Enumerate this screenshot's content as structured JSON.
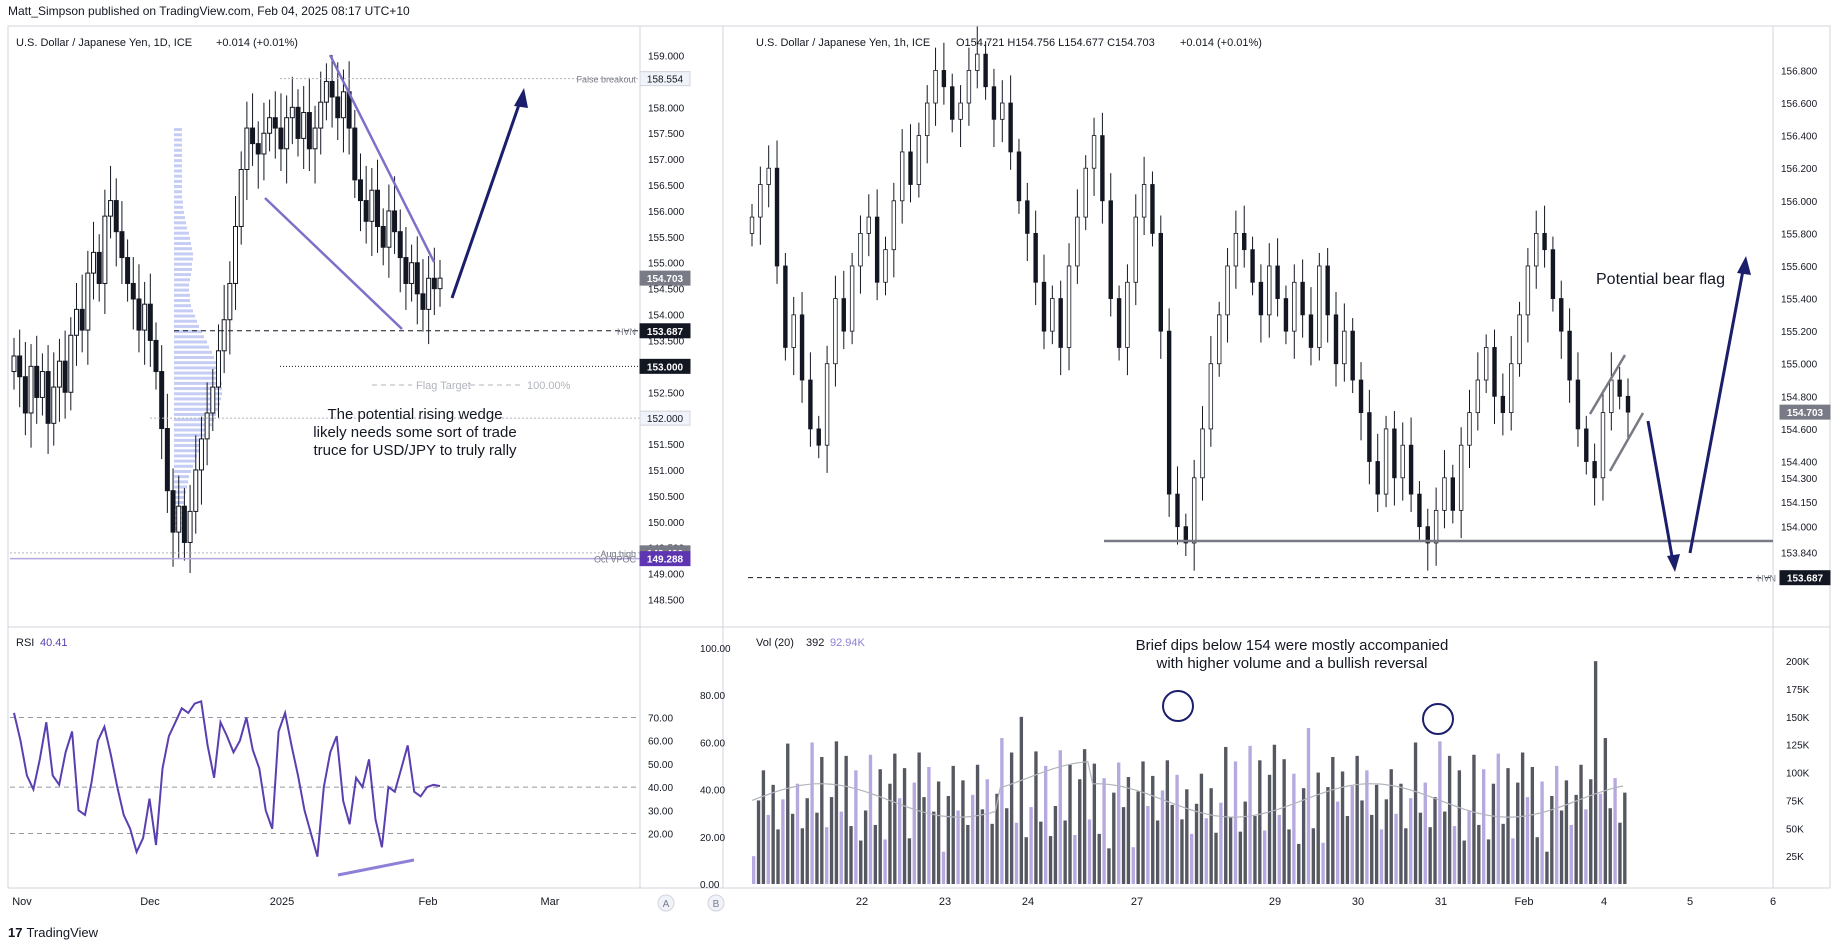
{
  "header": {
    "publisher_line": "Matt_Simpson published on TradingView.com, Feb 04, 2025 08:17 UTC+10"
  },
  "footer": {
    "brand": "TradingView",
    "logo_glyph": "17"
  },
  "left_panel": {
    "symbol_line": "U.S. Dollar / Japanese Yen, 1D, ICE",
    "change": "+0.014 (+0.01%)",
    "price_ticks": [
      "159.000",
      "158.500",
      "158.000",
      "157.500",
      "157.000",
      "156.500",
      "156.000",
      "155.500",
      "155.000",
      "154.500",
      "154.000",
      "153.500",
      "153.000",
      "152.500",
      "152.000",
      "151.500",
      "151.000",
      "150.500",
      "150.000",
      "149.500",
      "149.000",
      "148.500"
    ],
    "badges": [
      {
        "label": "158.554",
        "value": 158.554,
        "style": "light",
        "tag": "False breakout"
      },
      {
        "label": "154.703",
        "value": 154.703,
        "style": "gray",
        "tag": ""
      },
      {
        "label": "153.687",
        "value": 153.687,
        "style": "black",
        "tag": "HVN"
      },
      {
        "label": "153.000",
        "value": 153.0,
        "style": "black",
        "tag": ""
      },
      {
        "label": "152.000",
        "value": 152.0,
        "style": "light",
        "tag": ""
      },
      {
        "label": "149.400",
        "value": 149.4,
        "style": "gray",
        "tag": "Aug high"
      },
      {
        "label": "149.288",
        "value": 149.288,
        "style": "purple",
        "tag": "Oct VPOC"
      }
    ],
    "x_labels": [
      "Nov",
      "Dec",
      "2025",
      "Feb",
      "Mar"
    ],
    "flag_target_label": "Flag Target",
    "flag_target_pct": "100.00%",
    "annotation_lines": [
      "The potential rising wedge",
      "likely needs some sort of trade",
      "truce for USD/JPY to truly rally"
    ],
    "button_label": "A"
  },
  "rsi_panel": {
    "label": "RSI",
    "value": "40.41",
    "ticks": [
      "70.00",
      "60.00",
      "50.00",
      "40.00",
      "30.00",
      "20.00"
    ],
    "levels": [
      70,
      40,
      20
    ]
  },
  "right_panel": {
    "symbol_line": "U.S. Dollar / Japanese Yen, 1h, ICE",
    "ohlc": "O154.721  H154.756  L154.677  C154.703",
    "change": "+0.014 (+0.01%)",
    "price_ticks": [
      "156.800",
      "156.600",
      "156.400",
      "156.200",
      "156.000",
      "155.800",
      "155.600",
      "155.400",
      "155.200",
      "155.000",
      "154.800",
      "154.600",
      "154.400",
      "154.300",
      "154.150",
      "154.000",
      "153.840"
    ],
    "badges": [
      {
        "label": "154.703",
        "value": 154.703,
        "style": "gray",
        "tag": ""
      },
      {
        "label": "153.687",
        "value": 153.687,
        "style": "black",
        "tag": "HVN"
      }
    ],
    "x_labels": [
      "22",
      "23",
      "24",
      "27",
      "29",
      "30",
      "31",
      "Feb",
      "4",
      "5",
      "6"
    ],
    "bear_flag_label": "Potential bear flag",
    "button_label": "B"
  },
  "volume_panel": {
    "label": "Vol (20)",
    "value": "392",
    "ma_value": "92.94K",
    "ticks": [
      "200K",
      "175K",
      "150K",
      "125K",
      "100K",
      "75K",
      "50K",
      "25K"
    ],
    "left_ticks": [
      "100.00",
      "80.00",
      "60.00",
      "40.00",
      "20.00",
      "0.00"
    ],
    "annotation_lines": [
      "Brief dips below 154 were mostly accompanied",
      "with higher volume and a bullish reversal"
    ]
  },
  "chart_data": [
    {
      "type": "candlestick",
      "title": "U.S. Dollar / Japanese Yen, 1D, ICE",
      "ylim": [
        148.2,
        159.3
      ],
      "x_labels": [
        "Nov",
        "Dec",
        "2025",
        "Feb",
        "Mar"
      ],
      "key_levels": {
        "false_breakout": 158.554,
        "last": 154.703,
        "hvn": 153.687,
        "level_153": 153.0,
        "level_152": 152.0,
        "aug_high": 149.4,
        "oct_vpoc": 149.288
      },
      "closes": [
        153.2,
        152.8,
        152.1,
        153.0,
        152.4,
        152.9,
        151.9,
        152.6,
        153.1,
        152.5,
        153.6,
        154.1,
        153.7,
        154.8,
        155.2,
        154.6,
        155.9,
        156.2,
        155.6,
        155.1,
        154.6,
        154.3,
        153.7,
        154.2,
        153.5,
        152.9,
        151.8,
        150.6,
        149.8,
        150.3,
        149.6,
        150.2,
        151.0,
        151.6,
        152.1,
        152.6,
        153.3,
        153.9,
        154.6,
        155.7,
        156.8,
        157.6,
        157.3,
        157.1,
        157.5,
        157.8,
        157.6,
        157.2,
        157.8,
        158.0,
        157.4,
        157.9,
        157.2,
        157.6,
        158.1,
        158.5,
        158.2,
        157.8,
        158.3,
        157.6,
        156.6,
        156.2,
        155.8,
        156.4,
        155.7,
        155.3,
        156.0,
        155.6,
        155.1,
        154.6,
        155.0,
        154.4,
        154.1,
        154.7,
        154.5,
        154.703
      ]
    },
    {
      "type": "line",
      "title": "RSI",
      "current": 40.41,
      "ylim": [
        0,
        100
      ],
      "levels": [
        70,
        40,
        20
      ],
      "values": [
        72,
        60,
        45,
        39,
        52,
        68,
        45,
        41,
        55,
        64,
        30,
        28,
        42,
        60,
        66,
        54,
        40,
        28,
        22,
        12,
        18,
        35,
        15,
        48,
        62,
        68,
        74,
        72,
        76,
        77,
        58,
        44,
        68,
        62,
        55,
        60,
        70,
        56,
        48,
        30,
        22,
        64,
        72,
        58,
        45,
        30,
        20,
        10,
        40,
        55,
        62,
        34,
        24,
        44,
        40,
        52,
        26,
        14,
        40,
        38,
        48,
        58,
        38,
        36,
        40,
        41,
        40.41
      ]
    },
    {
      "type": "candlestick",
      "title": "U.S. Dollar / Japanese Yen, 1h, ICE",
      "ylim": [
        153.55,
        156.95
      ],
      "x_labels": [
        "22",
        "23",
        "24",
        "27",
        "29",
        "30",
        "31",
        "Feb",
        "4",
        "5",
        "6"
      ],
      "ohlc_last": {
        "open": 154.721,
        "high": 154.756,
        "low": 154.677,
        "close": 154.703
      },
      "key_levels": {
        "support": 154.0,
        "hvn": 153.687,
        "last": 154.703
      },
      "closes": [
        155.9,
        156.1,
        156.2,
        155.6,
        155.1,
        155.3,
        154.9,
        154.6,
        154.5,
        155.0,
        155.4,
        155.2,
        155.6,
        155.8,
        155.9,
        155.5,
        155.7,
        156.0,
        156.3,
        156.1,
        156.4,
        156.6,
        156.8,
        156.7,
        156.5,
        156.6,
        156.8,
        156.9,
        156.7,
        156.5,
        156.6,
        156.3,
        156.0,
        155.8,
        155.5,
        155.2,
        155.4,
        155.1,
        155.6,
        155.9,
        156.2,
        156.4,
        156.0,
        155.4,
        155.1,
        155.5,
        155.9,
        156.1,
        155.8,
        155.2,
        154.2,
        154.0,
        153.9,
        154.3,
        154.6,
        155.0,
        155.3,
        155.6,
        155.8,
        155.7,
        155.5,
        155.3,
        155.6,
        155.4,
        155.2,
        155.5,
        155.3,
        155.1,
        155.6,
        155.3,
        155.0,
        155.2,
        154.9,
        154.7,
        154.4,
        154.2,
        154.6,
        154.3,
        154.5,
        154.2,
        154.0,
        153.9,
        154.1,
        154.3,
        154.1,
        154.5,
        154.7,
        154.9,
        155.1,
        154.8,
        154.7,
        155.0,
        155.3,
        155.6,
        155.8,
        155.7,
        155.4,
        155.2,
        154.9,
        154.6,
        154.4,
        154.3,
        154.7,
        154.9,
        154.8,
        154.703
      ],
      "volume_peaks_k": [
        150,
        140,
        200
      ]
    }
  ],
  "colors": {
    "candle": "#131722",
    "wedge": "#7e6fc8",
    "arrow": "#1b1e6b",
    "rsi_line": "#5a3fb0",
    "vol_dark": "#555860",
    "vol_light": "#b6a9e0",
    "badge_black": "#131722",
    "badge_gray": "#787b86",
    "badge_purple": "#5e35b1",
    "grid_border": "#d1d4dc"
  }
}
